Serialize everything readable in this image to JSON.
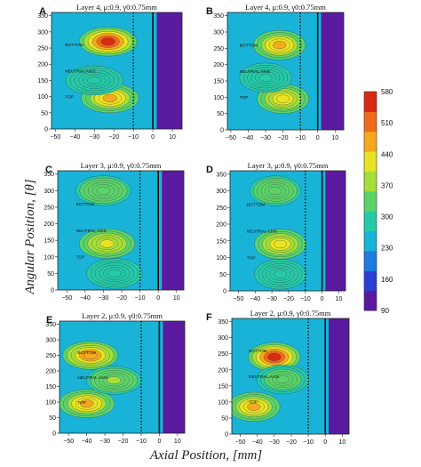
{
  "figure": {
    "ylabel": "Angular Position, [θ]",
    "xlabel": "Axial Position, [mm]"
  },
  "colorbar": {
    "ticks": [
      "580",
      "510",
      "440",
      "370",
      "300",
      "230",
      "160",
      "90"
    ],
    "range": [
      90,
      580
    ],
    "colors": [
      "#5a1aa0",
      "#2b3fd6",
      "#1f7be0",
      "#19b3d8",
      "#26c9a8",
      "#5cd36a",
      "#a6de3a",
      "#e8e423",
      "#f5a91e",
      "#f06a1c",
      "#d72a14"
    ]
  },
  "chart_data": [
    {
      "type": "heatmap",
      "panel": "A",
      "title": "Layer 4, μ:0.9, γ0:0.75mm",
      "xticks": [
        "−50",
        "−40",
        "−30",
        "−20",
        "−10",
        "0",
        "10"
      ],
      "yticks": [
        "0",
        "50",
        "100",
        "150",
        "200",
        "250",
        "300",
        "350"
      ],
      "xlim": [
        -52,
        15
      ],
      "ylim": [
        0,
        360
      ],
      "annotations": [
        "BOTTOM",
        "NEUTRAL AXIS",
        "TOP"
      ],
      "solid_line_x": 0,
      "dotted_line_x": -10,
      "value_range": [
        90,
        580
      ],
      "hotspots": [
        {
          "x": -23,
          "y": 270,
          "value": 580
        },
        {
          "x": -22,
          "y": 95,
          "value": 470
        },
        {
          "x": -30,
          "y": 150,
          "value": 300
        }
      ]
    },
    {
      "type": "heatmap",
      "panel": "B",
      "title": "Layer 4, μ:0.9, γ0:0.75mm",
      "xticks": [
        "−50",
        "−40",
        "−30",
        "−20",
        "−10",
        "0",
        "10"
      ],
      "yticks": [
        "0",
        "50",
        "100",
        "150",
        "200",
        "250",
        "300",
        "350"
      ],
      "xlim": [
        -52,
        15
      ],
      "ylim": [
        0,
        360
      ],
      "annotations": [
        "BOTTOM",
        "NEUTRAL AXIS",
        "TOP"
      ],
      "solid_line_x": 0,
      "dotted_line_x": -10,
      "value_range": [
        90,
        580
      ],
      "hotspots": [
        {
          "x": -22,
          "y": 260,
          "value": 470
        },
        {
          "x": -20,
          "y": 95,
          "value": 430
        },
        {
          "x": -30,
          "y": 160,
          "value": 280
        }
      ]
    },
    {
      "type": "heatmap",
      "panel": "C",
      "title": "Layer 3, μ:0.9, γ0:0.75mm",
      "xticks": [
        "−50",
        "−40",
        "−30",
        "−20",
        "−10",
        "0",
        "10"
      ],
      "yticks": [
        "0",
        "50",
        "100",
        "150",
        "200",
        "250",
        "300",
        "350"
      ],
      "xlim": [
        -55,
        14
      ],
      "ylim": [
        0,
        360
      ],
      "annotations": [
        "BOTTOM",
        "NEUTRAL AXIS",
        "TOP"
      ],
      "solid_line_x": 0,
      "dotted_line_x": -10,
      "value_range": [
        90,
        580
      ],
      "hotspots": [
        {
          "x": -28,
          "y": 140,
          "value": 420
        },
        {
          "x": -30,
          "y": 300,
          "value": 340
        },
        {
          "x": -24,
          "y": 50,
          "value": 300
        }
      ]
    },
    {
      "type": "heatmap",
      "panel": "D",
      "title": "Layer 3, μ:0.9, γ0:0.75mm",
      "xticks": [
        "−50",
        "−40",
        "−30",
        "−20",
        "−10",
        "0",
        "10"
      ],
      "yticks": [
        "0",
        "50",
        "100",
        "150",
        "200",
        "250",
        "300",
        "350"
      ],
      "xlim": [
        -55,
        14
      ],
      "ylim": [
        0,
        360
      ],
      "annotations": [
        "BOTTOM",
        "NEUTRAL AXIS",
        "TOP"
      ],
      "solid_line_x": 0,
      "dotted_line_x": -10,
      "value_range": [
        90,
        580
      ],
      "hotspots": [
        {
          "x": -25,
          "y": 140,
          "value": 430
        },
        {
          "x": -28,
          "y": 300,
          "value": 340
        },
        {
          "x": -25,
          "y": 50,
          "value": 310
        }
      ]
    },
    {
      "type": "heatmap",
      "panel": "E",
      "title": "Layer 2, μ:0.9, γ0:0.75mm",
      "xticks": [
        "−50",
        "−40",
        "−30",
        "−20",
        "−10",
        "0",
        "10"
      ],
      "yticks": [
        "0",
        "50",
        "100",
        "150",
        "200",
        "250",
        "300",
        "350"
      ],
      "xlim": [
        -55,
        14
      ],
      "ylim": [
        0,
        360
      ],
      "annotations": [
        "BOTTOM",
        "NEUTRAL AXIS",
        "TOP"
      ],
      "solid_line_x": 0,
      "dotted_line_x": -10,
      "value_range": [
        90,
        580
      ],
      "hotspots": [
        {
          "x": -38,
          "y": 250,
          "value": 480
        },
        {
          "x": -40,
          "y": 95,
          "value": 460
        },
        {
          "x": -25,
          "y": 170,
          "value": 360
        }
      ]
    },
    {
      "type": "heatmap",
      "panel": "F",
      "title": "Layer 2, μ:0.9, γ0:0.75mm",
      "xticks": [
        "−50",
        "−40",
        "−30",
        "−20",
        "−10",
        "0",
        "10"
      ],
      "yticks": [
        "0",
        "50",
        "100",
        "150",
        "200",
        "250",
        "300",
        "350"
      ],
      "xlim": [
        -55,
        14
      ],
      "ylim": [
        0,
        360
      ],
      "annotations": [
        "BOTTOM",
        "NEUTRAL AXIS",
        "TOP"
      ],
      "solid_line_x": 0,
      "dotted_line_x": -10,
      "value_range": [
        90,
        580
      ],
      "hotspots": [
        {
          "x": -30,
          "y": 240,
          "value": 560
        },
        {
          "x": -42,
          "y": 85,
          "value": 470
        },
        {
          "x": -25,
          "y": 170,
          "value": 330
        }
      ]
    }
  ]
}
